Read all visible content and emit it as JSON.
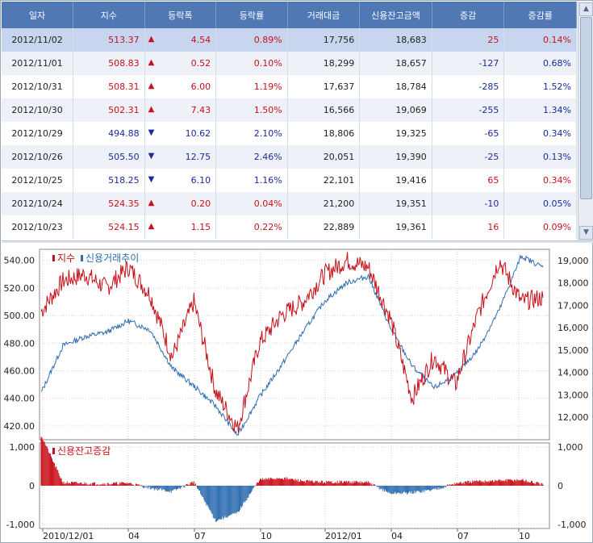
{
  "table": {
    "columns": [
      "일자",
      "지수",
      "등락폭",
      "등락률",
      "거래대금",
      "신용잔고금액",
      "증감",
      "증감률"
    ],
    "rows": [
      {
        "date": "2012/11/02",
        "index": "513.37",
        "dir": "up",
        "change": "4.54",
        "rate": "0.89%",
        "volume": "17,756",
        "balance": "18,683",
        "delta": "25",
        "delta_rate": "0.14%"
      },
      {
        "date": "2012/11/01",
        "index": "508.83",
        "dir": "up",
        "change": "0.52",
        "rate": "0.10%",
        "volume": "18,299",
        "balance": "18,657",
        "delta": "-127",
        "delta_rate": "0.68%"
      },
      {
        "date": "2012/10/31",
        "index": "508.31",
        "dir": "up",
        "change": "6.00",
        "rate": "1.19%",
        "volume": "17,637",
        "balance": "18,784",
        "delta": "-285",
        "delta_rate": "1.52%"
      },
      {
        "date": "2012/10/30",
        "index": "502.31",
        "dir": "up",
        "change": "7.43",
        "rate": "1.50%",
        "volume": "16,566",
        "balance": "19,069",
        "delta": "-255",
        "delta_rate": "1.34%"
      },
      {
        "date": "2012/10/29",
        "index": "494.88",
        "dir": "down",
        "change": "10.62",
        "rate": "2.10%",
        "volume": "18,806",
        "balance": "19,325",
        "delta": "-65",
        "delta_rate": "0.34%"
      },
      {
        "date": "2012/10/26",
        "index": "505.50",
        "dir": "down",
        "change": "12.75",
        "rate": "2.46%",
        "volume": "20,051",
        "balance": "19,390",
        "delta": "-25",
        "delta_rate": "0.13%"
      },
      {
        "date": "2012/10/25",
        "index": "518.25",
        "dir": "down",
        "change": "6.10",
        "rate": "1.16%",
        "volume": "22,101",
        "balance": "19,416",
        "delta": "65",
        "delta_rate": "0.34%"
      },
      {
        "date": "2012/10/24",
        "index": "524.35",
        "dir": "up",
        "change": "0.20",
        "rate": "0.04%",
        "volume": "21,200",
        "balance": "19,351",
        "delta": "-10",
        "delta_rate": "0.05%"
      },
      {
        "date": "2012/10/23",
        "index": "524.15",
        "dir": "up",
        "change": "1.15",
        "rate": "0.22%",
        "volume": "22,889",
        "balance": "19,361",
        "delta": "16",
        "delta_rate": "0.09%"
      }
    ]
  },
  "colors": {
    "up": "#c8101a",
    "down": "#1b2a9c",
    "header": "#4f78b4",
    "index_line": "#c8101a",
    "credit_line": "#2f6db0"
  },
  "chart_data": [
    {
      "type": "line",
      "legend": [
        "지수",
        "신용거래추이"
      ],
      "legend_placement": "top-left",
      "x_ticks": [
        "2010/12/01",
        "04",
        "07",
        "10",
        "2012/01",
        "04",
        "07",
        "10"
      ],
      "y_left": {
        "ticks": [
          "540.00",
          "520.00",
          "500.00",
          "480.00",
          "460.00",
          "440.00",
          "420.00"
        ],
        "range": [
          410,
          548
        ]
      },
      "y_right": {
        "ticks": [
          "19,000",
          "18,000",
          "17,000",
          "16,000",
          "15,000",
          "14,000",
          "13,000",
          "12,000"
        ],
        "range": [
          11000,
          19500
        ]
      },
      "grid": true,
      "series": [
        {
          "name": "지수",
          "axis": "left",
          "x": [
            "2010/12",
            "2011/01",
            "2011/02",
            "2011/03",
            "2011/04",
            "2011/05",
            "2011/06",
            "2011/07",
            "2011/08",
            "2011/09",
            "2011/10",
            "2011/11",
            "2011/12",
            "2012/01",
            "2012/02",
            "2012/03",
            "2012/04",
            "2012/05",
            "2012/06",
            "2012/07",
            "2012/08",
            "2012/09",
            "2012/10",
            "2012/11"
          ],
          "values": [
            503,
            525,
            530,
            520,
            535,
            515,
            470,
            510,
            445,
            418,
            480,
            500,
            510,
            530,
            540,
            535,
            498,
            440,
            470,
            450,
            500,
            540,
            510,
            513
          ]
        },
        {
          "name": "신용거래추이",
          "axis": "right",
          "x": [
            "2010/12",
            "2011/01",
            "2011/02",
            "2011/03",
            "2011/04",
            "2011/05",
            "2011/06",
            "2011/07",
            "2011/08",
            "2011/09",
            "2011/10",
            "2011/11",
            "2011/12",
            "2012/01",
            "2012/02",
            "2012/03",
            "2012/04",
            "2012/05",
            "2012/06",
            "2012/07",
            "2012/08",
            "2012/09",
            "2012/10",
            "2012/11"
          ],
          "values": [
            13100,
            15200,
            15600,
            15800,
            16300,
            15900,
            14200,
            13400,
            12500,
            11200,
            12900,
            14300,
            15800,
            17200,
            18000,
            18300,
            16000,
            14300,
            13300,
            13900,
            15000,
            16800,
            19200,
            18700
          ]
        }
      ]
    },
    {
      "type": "bar",
      "legend": [
        "신용잔고증감"
      ],
      "legend_placement": "top-left",
      "x_ticks": [
        "2010/12/01",
        "04",
        "07",
        "10",
        "2012/01",
        "04",
        "07",
        "10"
      ],
      "y_ticks": [
        "1,000",
        "0",
        "-1,000"
      ],
      "range": [
        -1100,
        1100
      ],
      "grid": true,
      "series": [
        {
          "name": "신용잔고증감",
          "x": [
            "2010/12",
            "2011/01",
            "2011/02",
            "2011/03",
            "2011/04",
            "2011/05",
            "2011/06",
            "2011/07",
            "2011/08",
            "2011/09",
            "2011/10",
            "2011/11",
            "2011/12",
            "2012/01",
            "2012/02",
            "2012/03",
            "2012/04",
            "2012/05",
            "2012/06",
            "2012/07",
            "2012/08",
            "2012/09",
            "2012/10",
            "2012/11"
          ],
          "values": [
            1300,
            80,
            60,
            50,
            70,
            -60,
            -150,
            100,
            -900,
            -700,
            150,
            200,
            120,
            90,
            100,
            80,
            -200,
            -180,
            -100,
            60,
            110,
            130,
            150,
            25
          ]
        }
      ]
    }
  ]
}
